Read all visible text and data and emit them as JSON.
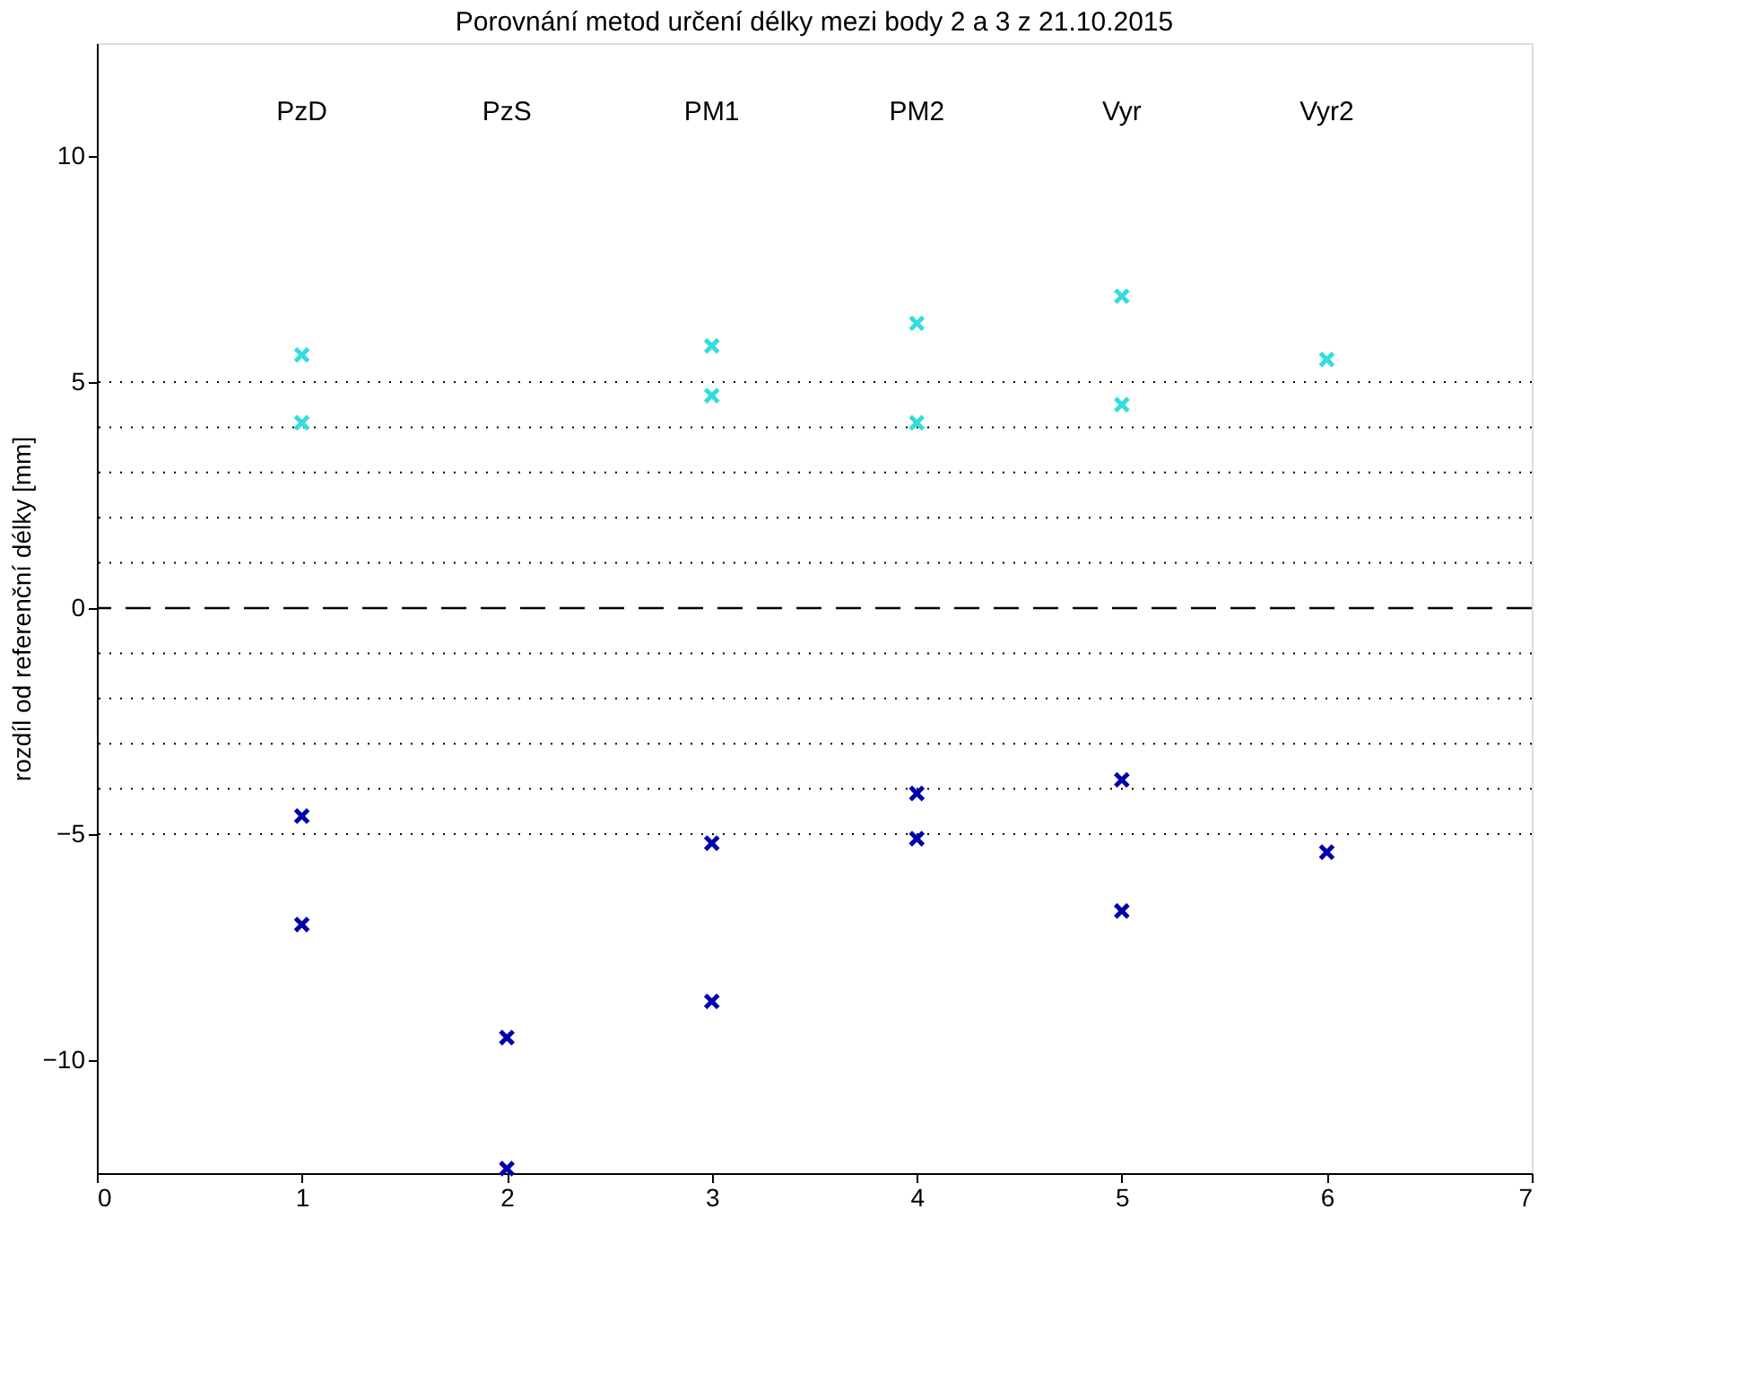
{
  "chart_data": {
    "type": "scatter",
    "title": "Porovnání metod určení délky mezi body 2 a 3 z 21.10.2015",
    "ylabel": "rozdíl od referenční délky [mm]",
    "xlim": [
      0,
      7
    ],
    "xticks": [
      0,
      1,
      2,
      3,
      4,
      5,
      6,
      7
    ],
    "ylim": [
      -12.5,
      12.5
    ],
    "yticks": [
      -10,
      -5,
      0,
      5,
      10
    ],
    "grid": false,
    "marker": "cross",
    "series": [
      {
        "color": "#33dddd",
        "x": [
          1,
          1,
          3,
          3,
          4,
          4,
          5,
          5,
          6
        ],
        "values": [
          5.6,
          4.1,
          5.8,
          4.7,
          6.3,
          4.1,
          6.9,
          4.5,
          5.5
        ]
      },
      {
        "color": "#0000aa",
        "x": [
          1,
          1,
          2,
          2,
          3,
          3,
          4,
          4,
          5,
          5,
          6
        ],
        "values": [
          -4.6,
          -7.0,
          -9.5,
          -12.4,
          -5.2,
          -8.7,
          -4.1,
          -5.1,
          -3.8,
          -6.7,
          -5.4
        ]
      }
    ],
    "ref_lines": [
      {
        "axis": "y",
        "value": 0,
        "line_style": "dashed",
        "color": "#000000"
      },
      {
        "axis": "y",
        "value": 1,
        "line_style": "dotted",
        "color": "#000000"
      },
      {
        "axis": "y",
        "value": 2,
        "line_style": "dotted",
        "color": "#000000"
      },
      {
        "axis": "y",
        "value": 3,
        "line_style": "dotted",
        "color": "#000000"
      },
      {
        "axis": "y",
        "value": 4,
        "line_style": "dotted",
        "color": "#000000"
      },
      {
        "axis": "y",
        "value": 5,
        "line_style": "dotted",
        "color": "#000000"
      },
      {
        "axis": "y",
        "value": -1,
        "line_style": "dotted",
        "color": "#000000"
      },
      {
        "axis": "y",
        "value": -2,
        "line_style": "dotted",
        "color": "#000000"
      },
      {
        "axis": "y",
        "value": -3,
        "line_style": "dotted",
        "color": "#000000"
      },
      {
        "axis": "y",
        "value": -4,
        "line_style": "dotted",
        "color": "#000000"
      },
      {
        "axis": "y",
        "value": -5,
        "line_style": "dotted",
        "color": "#000000"
      }
    ],
    "annotations": [
      "PzD",
      "PzS",
      "PM1",
      "PM2",
      "Vyr",
      "Vyr2"
    ]
  }
}
